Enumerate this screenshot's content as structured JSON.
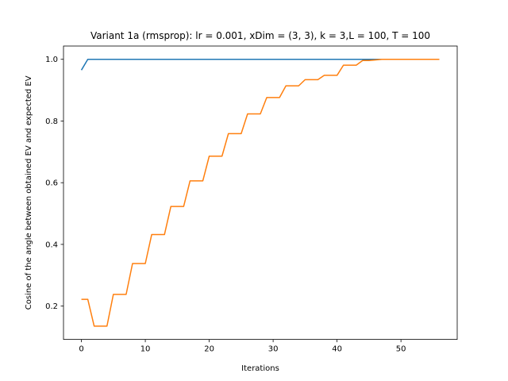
{
  "chart_data": {
    "type": "line",
    "title": "Variant 1a (rmsprop): lr = 0.001, xDim = (3, 3), k = 3,L = 100, T = 100",
    "xlabel": "Iterations",
    "ylabel": "Cosine of the angle between obtained EV and expected EV",
    "xlim": [
      -2.8,
      58.8
    ],
    "ylim": [
      0.092,
      1.043
    ],
    "xticks": [
      0,
      10,
      20,
      30,
      40,
      50
    ],
    "yticks": [
      0.2,
      0.4,
      0.6,
      0.8,
      1.0
    ],
    "xtick_labels": [
      "0",
      "10",
      "20",
      "30",
      "40",
      "50"
    ],
    "ytick_labels": [
      "0.2",
      "0.4",
      "0.6",
      "0.8",
      "1.0"
    ],
    "grid": false,
    "legend": "none",
    "series": [
      {
        "color": "#1f77b4",
        "x": [
          0,
          1,
          2,
          3,
          4,
          5,
          6,
          7,
          8,
          9,
          10,
          11,
          12,
          13,
          14,
          15,
          16,
          17,
          18,
          19,
          20,
          21,
          22,
          23,
          24,
          25,
          26,
          27,
          28,
          29,
          30,
          31,
          32,
          33,
          34,
          35,
          36,
          37,
          38,
          39,
          40,
          41,
          42,
          43,
          44,
          45,
          46,
          47,
          48,
          49,
          50,
          51,
          52,
          53,
          54,
          55,
          56
        ],
        "y": [
          0.965,
          1.0,
          1.0,
          1.0,
          1.0,
          1.0,
          1.0,
          1.0,
          1.0,
          1.0,
          1.0,
          1.0,
          1.0,
          1.0,
          1.0,
          1.0,
          1.0,
          1.0,
          1.0,
          1.0,
          1.0,
          1.0,
          1.0,
          1.0,
          1.0,
          1.0,
          1.0,
          1.0,
          1.0,
          1.0,
          1.0,
          1.0,
          1.0,
          1.0,
          1.0,
          1.0,
          1.0,
          1.0,
          1.0,
          1.0,
          1.0,
          1.0,
          1.0,
          1.0,
          1.0,
          1.0,
          1.0,
          1.0,
          1.0,
          1.0,
          1.0,
          1.0,
          1.0,
          1.0,
          1.0,
          1.0,
          1.0
        ]
      },
      {
        "color": "#ff7f0e",
        "x": [
          0,
          1,
          2,
          3,
          4,
          5,
          6,
          7,
          8,
          9,
          10,
          11,
          12,
          13,
          14,
          15,
          16,
          17,
          18,
          19,
          20,
          21,
          22,
          23,
          24,
          25,
          26,
          27,
          28,
          29,
          30,
          31,
          32,
          33,
          34,
          35,
          36,
          37,
          38,
          39,
          40,
          41,
          42,
          43,
          44,
          45,
          46,
          47,
          48,
          49,
          50,
          51,
          52,
          53,
          54,
          55,
          56
        ],
        "y": [
          0.222,
          0.222,
          0.135,
          0.135,
          0.135,
          0.238,
          0.238,
          0.238,
          0.338,
          0.338,
          0.338,
          0.432,
          0.432,
          0.432,
          0.523,
          0.523,
          0.523,
          0.606,
          0.606,
          0.606,
          0.686,
          0.686,
          0.686,
          0.759,
          0.759,
          0.759,
          0.823,
          0.823,
          0.823,
          0.876,
          0.876,
          0.876,
          0.914,
          0.914,
          0.914,
          0.934,
          0.934,
          0.934,
          0.948,
          0.948,
          0.948,
          0.981,
          0.981,
          0.981,
          0.996,
          0.996,
          0.998,
          1.0,
          1.0,
          1.0,
          1.0,
          1.0,
          1.0,
          1.0,
          1.0,
          1.0,
          1.0
        ]
      }
    ]
  }
}
